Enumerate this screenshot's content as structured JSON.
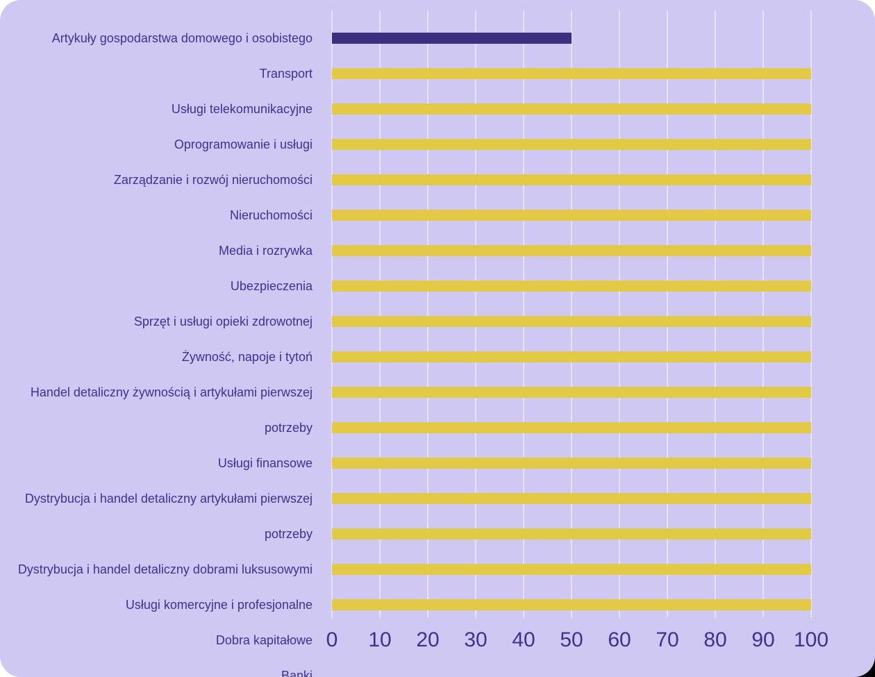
{
  "colors": {
    "page_background": "#ffffff",
    "panel_background": "#cfc8f2",
    "gridline": "#e6e2fa",
    "text": "#3e3192",
    "bar_default": "#e2ca46",
    "bar_highlight": "#3c2e80",
    "bottom_right_corner": "#000000"
  },
  "chart_data": {
    "type": "bar",
    "orientation": "horizontal",
    "title": "",
    "xlabel": "",
    "ylabel": "",
    "xlim": [
      0,
      100
    ],
    "x_ticks": [
      "0",
      "10",
      "20",
      "30",
      "40",
      "50",
      "60",
      "70",
      "80",
      "90",
      "100"
    ],
    "grid": "vertical-only",
    "legend": "none",
    "rows": [
      {
        "label": "Artykuły gospodarstwa domowego i osobistego",
        "value": 50,
        "highlight": true
      },
      {
        "label": "Transport",
        "value": 100,
        "highlight": false
      },
      {
        "label": "Usługi telekomunikacyjne",
        "value": 100,
        "highlight": false
      },
      {
        "label": "Oprogramowanie i usługi",
        "value": 100,
        "highlight": false
      },
      {
        "label": "Zarządzanie i rozwój nieruchomości",
        "value": 100,
        "highlight": false
      },
      {
        "label": "Nieruchomości",
        "value": 100,
        "highlight": false
      },
      {
        "label": "Media i rozrywka",
        "value": 100,
        "highlight": false
      },
      {
        "label": "Ubezpieczenia",
        "value": 100,
        "highlight": false
      },
      {
        "label": "Sprzęt i usługi opieki zdrowotnej",
        "value": 100,
        "highlight": false
      },
      {
        "label": "Żywność, napoje i tytoń",
        "value": 100,
        "highlight": false
      },
      {
        "label": "Handel detaliczny żywnością i artykułami pierwszej",
        "value": 100,
        "highlight": false
      },
      {
        "label": "potrzeby",
        "value": 100,
        "highlight": false
      },
      {
        "label": "Usługi finansowe",
        "value": 100,
        "highlight": false
      },
      {
        "label": "Dystrybucja i handel detaliczny artykułami pierwszej",
        "value": 100,
        "highlight": false
      },
      {
        "label": "potrzeby",
        "value": 100,
        "highlight": false
      },
      {
        "label": "Dystrybucja i handel detaliczny dobrami luksusowymi",
        "value": 100,
        "highlight": false
      },
      {
        "label": "Usługi komercyjne i profesjonalne",
        "value": 100,
        "highlight": false
      },
      {
        "label": "Dobra kapitałowe",
        "value": null,
        "highlight": false
      },
      {
        "label": "Banki",
        "value": null,
        "highlight": false
      }
    ]
  }
}
